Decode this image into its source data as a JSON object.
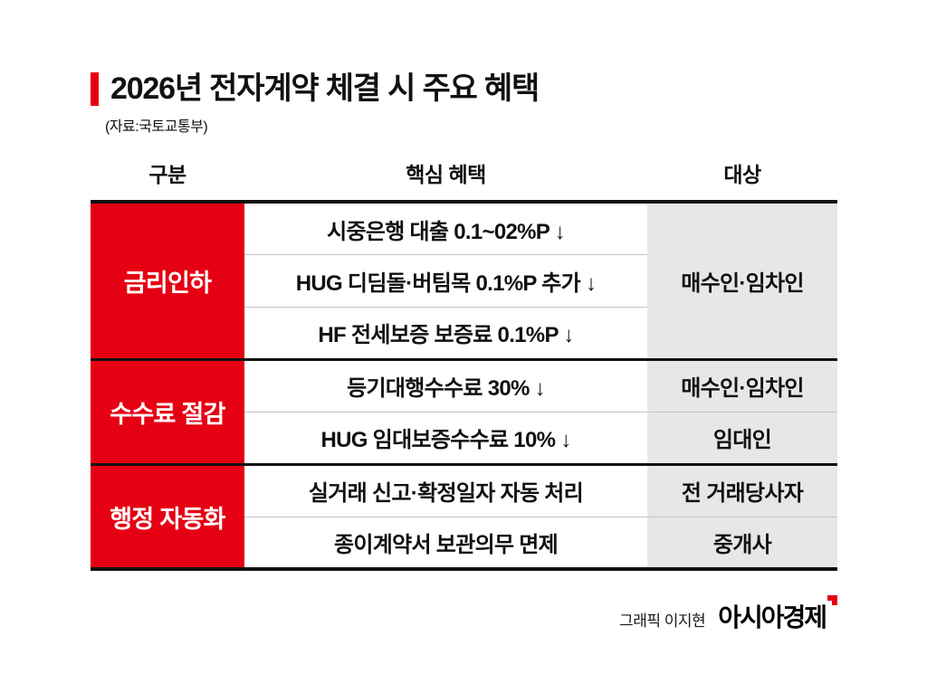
{
  "title": "2026년 전자계약 체결 시 주요 혜택",
  "source": "(자료:국토교통부)",
  "table": {
    "headers": [
      "구분",
      "핵심 혜택",
      "대상"
    ],
    "groups": [
      {
        "category": "금리인하",
        "target": "매수인·임차인",
        "rows": [
          {
            "benefit": "시중은행 대출 0.1~02%P ↓"
          },
          {
            "benefit": "HUG 디딤돌·버팀목 0.1%P 추가 ↓"
          },
          {
            "benefit": "HF 전세보증 보증료 0.1%P ↓"
          }
        ]
      },
      {
        "category": "수수료 절감",
        "rows": [
          {
            "benefit": "등기대행수수료 30% ↓",
            "target": "매수인·임차인"
          },
          {
            "benefit": "HUG 임대보증수수료 10% ↓",
            "target": "임대인"
          }
        ]
      },
      {
        "category": "행정 자동화",
        "rows": [
          {
            "benefit": "실거래 신고·확정일자 자동 처리",
            "target": "전 거래당사자"
          },
          {
            "benefit": "종이계약서 보관의무 면제",
            "target": "중개사"
          }
        ]
      }
    ]
  },
  "footer": {
    "credit": "그래픽 이지현",
    "logo": "아시아경제"
  },
  "colors": {
    "accent_red": "#e60013",
    "target_gray": "#e7e7e7"
  },
  "chart_data": {
    "type": "table",
    "title": "2026년 전자계약 체결 시 주요 혜택",
    "source": "(자료:국토교통부)",
    "columns": [
      "구분",
      "핵심 혜택",
      "대상"
    ],
    "rows": [
      [
        "금리인하",
        "시중은행 대출 0.1~02%P ↓",
        "매수인·임차인"
      ],
      [
        "금리인하",
        "HUG 디딤돌·버팀목 0.1%P 추가 ↓",
        "매수인·임차인"
      ],
      [
        "금리인하",
        "HF 전세보증 보증료 0.1%P ↓",
        "매수인·임차인"
      ],
      [
        "수수료 절감",
        "등기대행수수료 30% ↓",
        "매수인·임차인"
      ],
      [
        "수수료 절감",
        "HUG 임대보증수수료 10% ↓",
        "임대인"
      ],
      [
        "행정 자동화",
        "실거래 신고·확정일자 자동 처리",
        "전 거래당사자"
      ],
      [
        "행정 자동화",
        "종이계약서 보관의무 면제",
        "중개사"
      ]
    ]
  }
}
